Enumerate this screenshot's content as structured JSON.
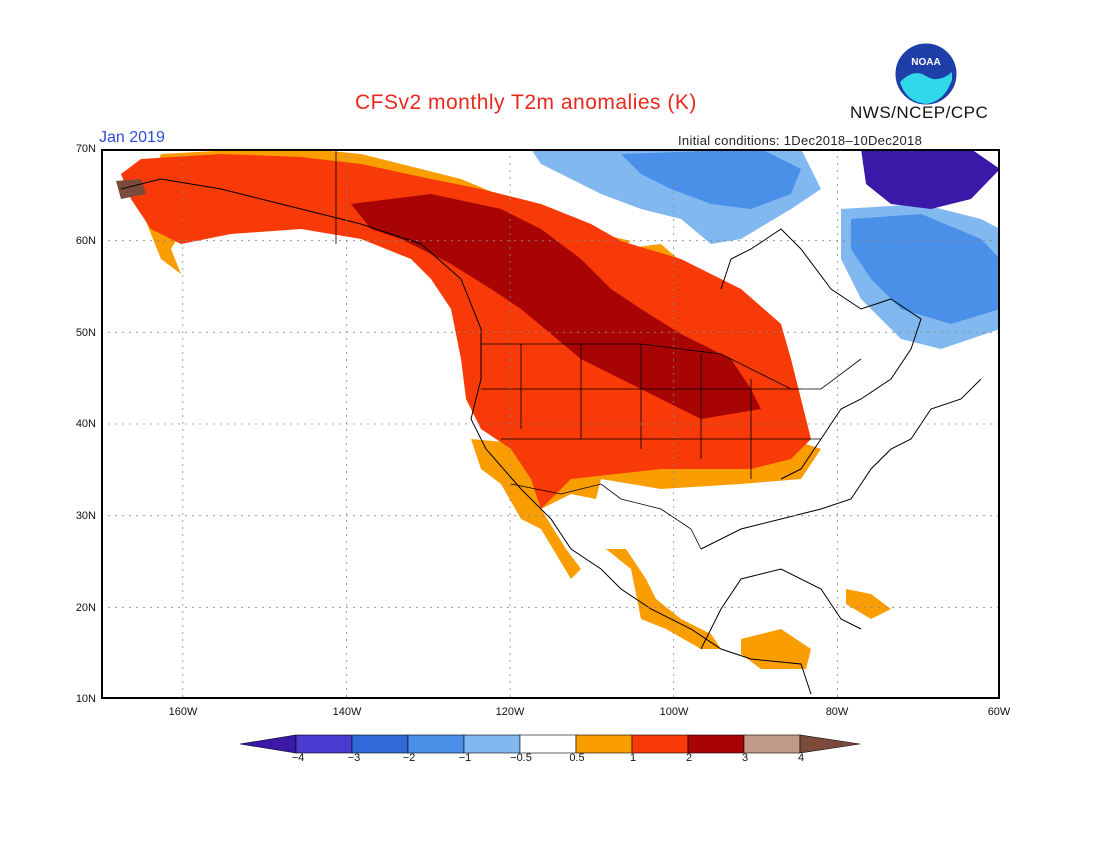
{
  "header": {
    "title": "CFSv2 monthly T2m anomalies (K)",
    "month": "Jan 2019",
    "initial_conditions": "Initial conditions: 1Dec2018–10Dec2018",
    "org": "NWS/NCEP/CPC",
    "logo_text": "NOAA"
  },
  "axes": {
    "lat_labels": [
      "70N",
      "60N",
      "50N",
      "40N",
      "30N",
      "20N",
      "10N"
    ],
    "lon_labels": [
      "160W",
      "140W",
      "120W",
      "100W",
      "80W",
      "60W"
    ]
  },
  "colorbar": {
    "labels": [
      "−4",
      "−3",
      "−2",
      "−1",
      "−0.5",
      "0.5",
      "1",
      "2",
      "3",
      "4"
    ],
    "colors": [
      "#3a18a8",
      "#4a3bd0",
      "#2f6ad8",
      "#4a90e8",
      "#82b8f0",
      "#ffffff",
      "#f99d00",
      "#f83a08",
      "#a80404",
      "#c29a88",
      "#7a4b3a"
    ]
  },
  "map_data": {
    "lat_range": [
      10,
      70
    ],
    "lon_range": [
      -171,
      -60
    ],
    "anomaly_regions": [
      {
        "name": "alaska",
        "category": "1 to 2"
      },
      {
        "name": "western-canada-northern-plains",
        "category": "2 to 3"
      },
      {
        "name": "western-us",
        "category": "1 to 2"
      },
      {
        "name": "southern-us-mexico",
        "category": "0.5 to 1"
      },
      {
        "name": "northeast-canada-greenland",
        "category": "-2 to -1"
      },
      {
        "name": "baffin-region",
        "category": "-4 to -3"
      }
    ]
  }
}
